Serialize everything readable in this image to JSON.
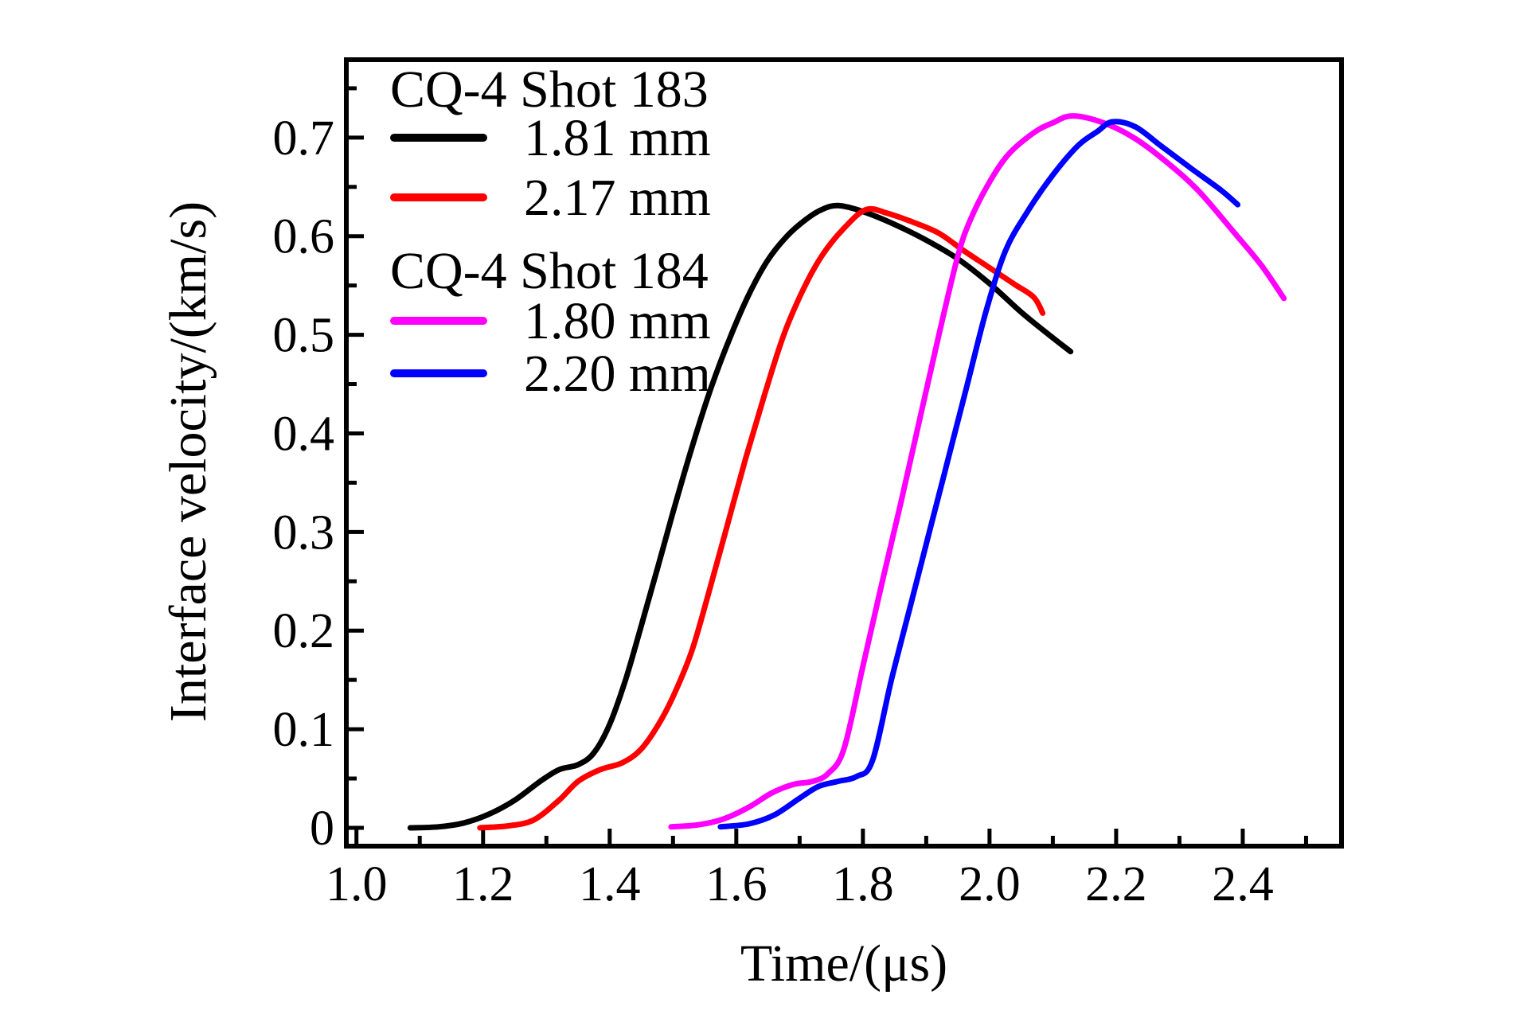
{
  "figure": {
    "background": "#ffffff",
    "axis_color": "#000000"
  },
  "chart_data": {
    "type": "line",
    "title": "",
    "xlabel": "Time/(μs)",
    "ylabel": "Interface velocity/(km/s)",
    "xlim": [
      0.984,
      2.556
    ],
    "ylim": [
      -0.0186,
      0.779
    ],
    "grid": false,
    "legend_position": "upper-left",
    "x_major_ticks": [
      1.0,
      1.2,
      1.4,
      1.6,
      1.8,
      2.0,
      2.2,
      2.4
    ],
    "x_tick_labels": [
      "1.0",
      "1.2",
      "1.4",
      "1.6",
      "1.8",
      "2.0",
      "2.2",
      "2.4"
    ],
    "x_minor_ticks": [
      1.1,
      1.3,
      1.5,
      1.7,
      1.9,
      2.1,
      2.3,
      2.5
    ],
    "y_major_ticks": [
      0.0,
      0.1,
      0.2,
      0.3,
      0.4,
      0.5,
      0.6,
      0.7
    ],
    "y_tick_labels": [
      "0",
      "0.1",
      "0.2",
      "0.3",
      "0.4",
      "0.5",
      "0.6",
      "0.7"
    ],
    "y_minor_ticks": [
      0.05,
      0.15,
      0.25,
      0.35,
      0.45,
      0.55,
      0.65,
      0.75
    ],
    "series": [
      {
        "name": "shot-183-1.81mm",
        "group": "CQ-4 Shot 183",
        "label": "1.81 mm",
        "color": "#000000",
        "points": [
          [
            1.085,
            0.0
          ],
          [
            1.13,
            0.001
          ],
          [
            1.17,
            0.005
          ],
          [
            1.21,
            0.014
          ],
          [
            1.25,
            0.028
          ],
          [
            1.29,
            0.047
          ],
          [
            1.32,
            0.059
          ],
          [
            1.35,
            0.064
          ],
          [
            1.375,
            0.076
          ],
          [
            1.4,
            0.105
          ],
          [
            1.425,
            0.15
          ],
          [
            1.45,
            0.205
          ],
          [
            1.475,
            0.262
          ],
          [
            1.5,
            0.32
          ],
          [
            1.53,
            0.386
          ],
          [
            1.56,
            0.446
          ],
          [
            1.59,
            0.497
          ],
          [
            1.62,
            0.541
          ],
          [
            1.65,
            0.576
          ],
          [
            1.68,
            0.6
          ],
          [
            1.71,
            0.617
          ],
          [
            1.735,
            0.627
          ],
          [
            1.761,
            0.631
          ],
          [
            1.8,
            0.625
          ],
          [
            1.85,
            0.612
          ],
          [
            1.9,
            0.596
          ],
          [
            1.95,
            0.577
          ],
          [
            2.0,
            0.552
          ],
          [
            2.05,
            0.523
          ],
          [
            2.09,
            0.502
          ],
          [
            2.128,
            0.483
          ]
        ]
      },
      {
        "name": "shot-183-2.17mm",
        "group": "CQ-4 Shot 183",
        "label": "2.17 mm",
        "color": "#ff0000",
        "points": [
          [
            1.195,
            0.0
          ],
          [
            1.24,
            0.002
          ],
          [
            1.28,
            0.008
          ],
          [
            1.32,
            0.028
          ],
          [
            1.35,
            0.047
          ],
          [
            1.385,
            0.059
          ],
          [
            1.42,
            0.066
          ],
          [
            1.45,
            0.08
          ],
          [
            1.48,
            0.108
          ],
          [
            1.505,
            0.14
          ],
          [
            1.53,
            0.18
          ],
          [
            1.555,
            0.235
          ],
          [
            1.585,
            0.305
          ],
          [
            1.615,
            0.375
          ],
          [
            1.645,
            0.44
          ],
          [
            1.675,
            0.5
          ],
          [
            1.705,
            0.545
          ],
          [
            1.735,
            0.58
          ],
          [
            1.77,
            0.608
          ],
          [
            1.805,
            0.627
          ],
          [
            1.84,
            0.623
          ],
          [
            1.88,
            0.614
          ],
          [
            1.92,
            0.603
          ],
          [
            1.96,
            0.585
          ],
          [
            2.0,
            0.568
          ],
          [
            2.04,
            0.551
          ],
          [
            2.07,
            0.538
          ],
          [
            2.084,
            0.522
          ]
        ]
      },
      {
        "name": "shot-184-1.80mm",
        "group": "CQ-4 Shot 184",
        "label": "1.80 mm",
        "color": "#ff00ff",
        "points": [
          [
            1.497,
            0.001
          ],
          [
            1.54,
            0.003
          ],
          [
            1.58,
            0.009
          ],
          [
            1.62,
            0.021
          ],
          [
            1.655,
            0.035
          ],
          [
            1.69,
            0.044
          ],
          [
            1.72,
            0.047
          ],
          [
            1.745,
            0.055
          ],
          [
            1.77,
            0.08
          ],
          [
            1.8,
            0.164
          ],
          [
            1.83,
            0.248
          ],
          [
            1.86,
            0.33
          ],
          [
            1.89,
            0.415
          ],
          [
            1.92,
            0.5
          ],
          [
            1.95,
            0.58
          ],
          [
            1.97,
            0.617
          ],
          [
            2.0,
            0.655
          ],
          [
            2.03,
            0.683
          ],
          [
            2.07,
            0.705
          ],
          [
            2.1,
            0.715
          ],
          [
            2.131,
            0.722
          ],
          [
            2.18,
            0.715
          ],
          [
            2.23,
            0.699
          ],
          [
            2.28,
            0.675
          ],
          [
            2.33,
            0.646
          ],
          [
            2.39,
            0.601
          ],
          [
            2.43,
            0.57
          ],
          [
            2.465,
            0.537
          ]
        ]
      },
      {
        "name": "shot-184-2.20mm",
        "group": "CQ-4 Shot 184",
        "label": "2.20 mm",
        "color": "#0000ff",
        "points": [
          [
            1.575,
            0.001
          ],
          [
            1.62,
            0.004
          ],
          [
            1.66,
            0.013
          ],
          [
            1.7,
            0.03
          ],
          [
            1.73,
            0.042
          ],
          [
            1.76,
            0.047
          ],
          [
            1.79,
            0.052
          ],
          [
            1.815,
            0.068
          ],
          [
            1.845,
            0.15
          ],
          [
            1.875,
            0.225
          ],
          [
            1.905,
            0.3
          ],
          [
            1.935,
            0.375
          ],
          [
            1.965,
            0.45
          ],
          [
            1.995,
            0.525
          ],
          [
            2.025,
            0.585
          ],
          [
            2.06,
            0.625
          ],
          [
            2.1,
            0.662
          ],
          [
            2.14,
            0.692
          ],
          [
            2.17,
            0.706
          ],
          [
            2.194,
            0.716
          ],
          [
            2.23,
            0.711
          ],
          [
            2.27,
            0.692
          ],
          [
            2.32,
            0.668
          ],
          [
            2.365,
            0.647
          ],
          [
            2.392,
            0.632
          ]
        ]
      }
    ]
  },
  "legend": {
    "groups": [
      {
        "header": "CQ-4 Shot 183",
        "items": [
          {
            "label": "1.81 mm",
            "color": "#000000"
          },
          {
            "label": "2.17 mm",
            "color": "#ff0000"
          }
        ]
      },
      {
        "header": "CQ-4 Shot 184",
        "items": [
          {
            "label": "1.80 mm",
            "color": "#ff00ff"
          },
          {
            "label": "2.20 mm",
            "color": "#0000ff"
          }
        ]
      }
    ]
  }
}
